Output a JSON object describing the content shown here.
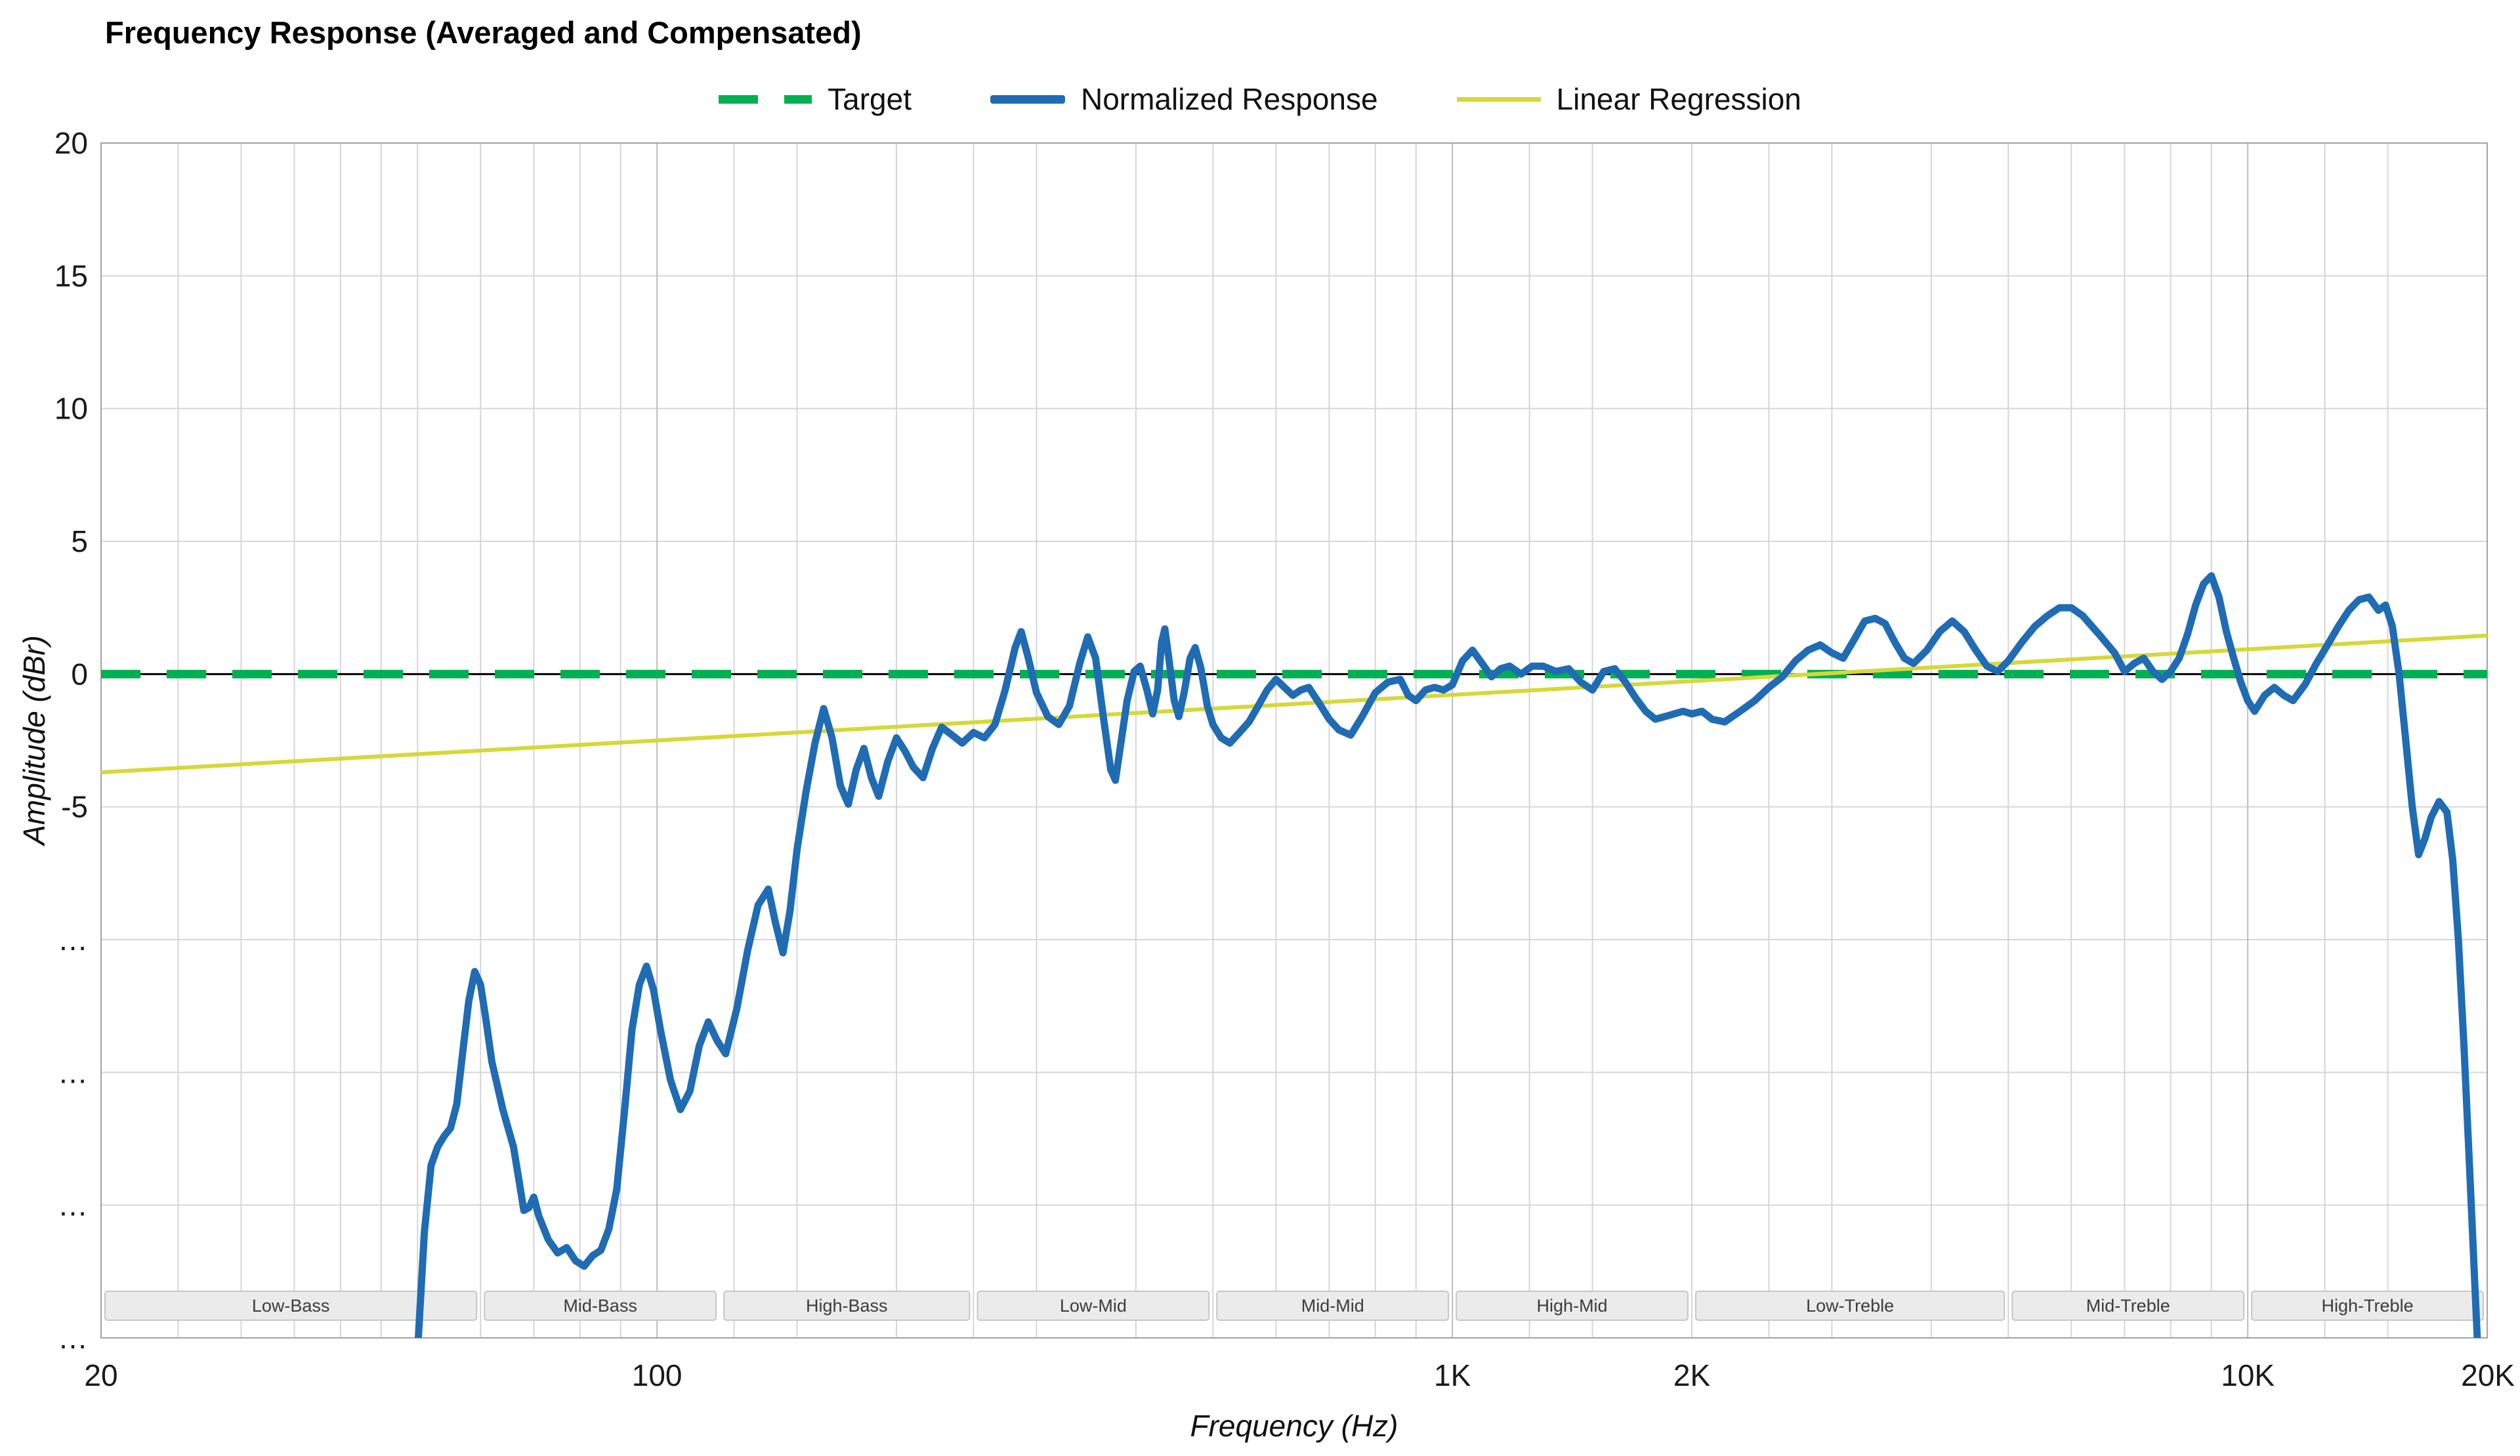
{
  "legend": {
    "items": [
      {
        "label": "Target"
      },
      {
        "label": "Normalized Response"
      },
      {
        "label": "Linear Regression"
      }
    ]
  },
  "chart_data": {
    "type": "line",
    "title": "Frequency Response (Averaged and Compensated)",
    "xlabel": "Frequency (Hz)",
    "ylabel": "Amplitude (dBr)",
    "x_scale": "log",
    "xlim": [
      20,
      20000
    ],
    "ylim": [
      -25,
      20
    ],
    "grid": true,
    "legend_position": "top-center",
    "x_ticks": [
      {
        "value": 20,
        "label": "20"
      },
      {
        "value": 100,
        "label": "100"
      },
      {
        "value": 1000,
        "label": "1K"
      },
      {
        "value": 2000,
        "label": "2K"
      },
      {
        "value": 10000,
        "label": "10K"
      },
      {
        "value": 20000,
        "label": "20K"
      }
    ],
    "y_ticks": [
      {
        "value": 20,
        "label": "20"
      },
      {
        "value": 15,
        "label": "15"
      },
      {
        "value": 10,
        "label": "10"
      },
      {
        "value": 5,
        "label": "5"
      },
      {
        "value": 0,
        "label": "0"
      },
      {
        "value": -5,
        "label": "-5"
      },
      {
        "value": -10,
        "label": "…"
      },
      {
        "value": -15,
        "label": "…"
      },
      {
        "value": -20,
        "label": "…"
      },
      {
        "value": -25,
        "label": "…"
      }
    ],
    "bands": [
      {
        "label": "Low-Bass",
        "from": 20,
        "to": 60
      },
      {
        "label": "Mid-Bass",
        "from": 60,
        "to": 120
      },
      {
        "label": "High-Bass",
        "from": 120,
        "to": 250
      },
      {
        "label": "Low-Mid",
        "from": 250,
        "to": 500
      },
      {
        "label": "Mid-Mid",
        "from": 500,
        "to": 1000
      },
      {
        "label": "High-Mid",
        "from": 1000,
        "to": 2000
      },
      {
        "label": "Low-Treble",
        "from": 2000,
        "to": 5000
      },
      {
        "label": "Mid-Treble",
        "from": 5000,
        "to": 10000
      },
      {
        "label": "High-Treble",
        "from": 10000,
        "to": 20000
      }
    ],
    "colors": {
      "target": "#00b052",
      "response": "#1f6cb4",
      "regression": "#d6d838",
      "grid": "#d6d6d6",
      "grid_major": "#bdbdbd",
      "frame": "#a3a3a3",
      "zero_line": "#000000",
      "band_fill": "#ebebeb",
      "band_border": "#c6c6c6",
      "band_text": "#3c3c3c",
      "tick_text": "#1a1a1a"
    },
    "series": [
      {
        "name": "Target",
        "type": "dashed-horizontal",
        "value": 0
      },
      {
        "name": "Normalized Response",
        "type": "line",
        "points": [
          [
            50,
            -25.5
          ],
          [
            51,
            -21.0
          ],
          [
            52,
            -18.5
          ],
          [
            53,
            -17.8
          ],
          [
            54,
            -17.4
          ],
          [
            55,
            -17.1
          ],
          [
            56,
            -16.2
          ],
          [
            57,
            -14.2
          ],
          [
            58,
            -12.3
          ],
          [
            59,
            -11.2
          ],
          [
            60,
            -11.7
          ],
          [
            61,
            -13.1
          ],
          [
            62,
            -14.6
          ],
          [
            64,
            -16.4
          ],
          [
            66,
            -17.8
          ],
          [
            67,
            -19.0
          ],
          [
            68,
            -20.2
          ],
          [
            69,
            -20.1
          ],
          [
            70,
            -19.7
          ],
          [
            71,
            -20.4
          ],
          [
            73,
            -21.3
          ],
          [
            75,
            -21.8
          ],
          [
            77,
            -21.6
          ],
          [
            79,
            -22.1
          ],
          [
            81,
            -22.3
          ],
          [
            83,
            -21.9
          ],
          [
            85,
            -21.7
          ],
          [
            87,
            -20.9
          ],
          [
            89,
            -19.4
          ],
          [
            91,
            -16.5
          ],
          [
            93,
            -13.4
          ],
          [
            95,
            -11.7
          ],
          [
            97,
            -11.0
          ],
          [
            99,
            -11.9
          ],
          [
            101,
            -13.4
          ],
          [
            104,
            -15.3
          ],
          [
            107,
            -16.4
          ],
          [
            110,
            -15.7
          ],
          [
            113,
            -14.0
          ],
          [
            116,
            -13.1
          ],
          [
            119,
            -13.8
          ],
          [
            122,
            -14.3
          ],
          [
            126,
            -12.6
          ],
          [
            130,
            -10.4
          ],
          [
            134,
            -8.7
          ],
          [
            138,
            -8.1
          ],
          [
            141,
            -9.4
          ],
          [
            144,
            -10.5
          ],
          [
            147,
            -8.9
          ],
          [
            150,
            -6.6
          ],
          [
            154,
            -4.4
          ],
          [
            158,
            -2.6
          ],
          [
            162,
            -1.3
          ],
          [
            166,
            -2.4
          ],
          [
            170,
            -4.2
          ],
          [
            174,
            -4.9
          ],
          [
            178,
            -3.6
          ],
          [
            182,
            -2.8
          ],
          [
            186,
            -3.9
          ],
          [
            190,
            -4.6
          ],
          [
            195,
            -3.3
          ],
          [
            200,
            -2.4
          ],
          [
            205,
            -2.9
          ],
          [
            210,
            -3.5
          ],
          [
            216,
            -3.9
          ],
          [
            222,
            -2.8
          ],
          [
            228,
            -2.0
          ],
          [
            235,
            -2.3
          ],
          [
            242,
            -2.6
          ],
          [
            250,
            -2.2
          ],
          [
            258,
            -2.4
          ],
          [
            266,
            -1.9
          ],
          [
            274,
            -0.6
          ],
          [
            282,
            1.0
          ],
          [
            287,
            1.6
          ],
          [
            293,
            0.6
          ],
          [
            300,
            -0.7
          ],
          [
            310,
            -1.6
          ],
          [
            320,
            -1.9
          ],
          [
            330,
            -1.2
          ],
          [
            340,
            0.4
          ],
          [
            348,
            1.4
          ],
          [
            356,
            0.6
          ],
          [
            364,
            -1.6
          ],
          [
            372,
            -3.6
          ],
          [
            377,
            -4.0
          ],
          [
            383,
            -2.6
          ],
          [
            390,
            -1.0
          ],
          [
            398,
            0.1
          ],
          [
            405,
            0.3
          ],
          [
            413,
            -0.6
          ],
          [
            420,
            -1.5
          ],
          [
            426,
            -0.6
          ],
          [
            431,
            1.2
          ],
          [
            435,
            1.7
          ],
          [
            440,
            0.6
          ],
          [
            447,
            -1.0
          ],
          [
            453,
            -1.6
          ],
          [
            460,
            -0.7
          ],
          [
            468,
            0.6
          ],
          [
            475,
            1.0
          ],
          [
            483,
            0.2
          ],
          [
            492,
            -1.2
          ],
          [
            500,
            -1.9
          ],
          [
            512,
            -2.4
          ],
          [
            525,
            -2.6
          ],
          [
            540,
            -2.2
          ],
          [
            555,
            -1.8
          ],
          [
            570,
            -1.2
          ],
          [
            585,
            -0.6
          ],
          [
            600,
            -0.2
          ],
          [
            615,
            -0.5
          ],
          [
            630,
            -0.8
          ],
          [
            645,
            -0.6
          ],
          [
            660,
            -0.5
          ],
          [
            680,
            -1.1
          ],
          [
            700,
            -1.7
          ],
          [
            720,
            -2.1
          ],
          [
            745,
            -2.3
          ],
          [
            770,
            -1.6
          ],
          [
            800,
            -0.7
          ],
          [
            830,
            -0.3
          ],
          [
            860,
            -0.2
          ],
          [
            880,
            -0.8
          ],
          [
            900,
            -1.0
          ],
          [
            925,
            -0.6
          ],
          [
            950,
            -0.5
          ],
          [
            975,
            -0.6
          ],
          [
            1000,
            -0.4
          ],
          [
            1030,
            0.5
          ],
          [
            1060,
            0.9
          ],
          [
            1090,
            0.4
          ],
          [
            1120,
            -0.1
          ],
          [
            1150,
            0.2
          ],
          [
            1180,
            0.3
          ],
          [
            1220,
            0.0
          ],
          [
            1260,
            0.3
          ],
          [
            1300,
            0.3
          ],
          [
            1350,
            0.1
          ],
          [
            1400,
            0.2
          ],
          [
            1450,
            -0.3
          ],
          [
            1500,
            -0.6
          ],
          [
            1550,
            0.1
          ],
          [
            1600,
            0.2
          ],
          [
            1650,
            -0.3
          ],
          [
            1700,
            -0.9
          ],
          [
            1750,
            -1.4
          ],
          [
            1800,
            -1.7
          ],
          [
            1850,
            -1.6
          ],
          [
            1900,
            -1.5
          ],
          [
            1950,
            -1.4
          ],
          [
            2000,
            -1.5
          ],
          [
            2060,
            -1.4
          ],
          [
            2120,
            -1.7
          ],
          [
            2200,
            -1.8
          ],
          [
            2300,
            -1.4
          ],
          [
            2400,
            -1.0
          ],
          [
            2500,
            -0.5
          ],
          [
            2600,
            -0.1
          ],
          [
            2700,
            0.5
          ],
          [
            2800,
            0.9
          ],
          [
            2900,
            1.1
          ],
          [
            3000,
            0.8
          ],
          [
            3100,
            0.6
          ],
          [
            3200,
            1.3
          ],
          [
            3300,
            2.0
          ],
          [
            3400,
            2.1
          ],
          [
            3500,
            1.9
          ],
          [
            3600,
            1.2
          ],
          [
            3700,
            0.6
          ],
          [
            3800,
            0.4
          ],
          [
            3950,
            0.9
          ],
          [
            4100,
            1.6
          ],
          [
            4250,
            2.0
          ],
          [
            4400,
            1.6
          ],
          [
            4550,
            0.9
          ],
          [
            4700,
            0.3
          ],
          [
            4850,
            0.1
          ],
          [
            5000,
            0.5
          ],
          [
            5200,
            1.2
          ],
          [
            5400,
            1.8
          ],
          [
            5600,
            2.2
          ],
          [
            5800,
            2.5
          ],
          [
            6000,
            2.5
          ],
          [
            6200,
            2.2
          ],
          [
            6500,
            1.5
          ],
          [
            6800,
            0.8
          ],
          [
            7000,
            0.1
          ],
          [
            7200,
            0.4
          ],
          [
            7400,
            0.6
          ],
          [
            7600,
            0.1
          ],
          [
            7800,
            -0.2
          ],
          [
            8000,
            0.1
          ],
          [
            8200,
            0.6
          ],
          [
            8400,
            1.5
          ],
          [
            8600,
            2.6
          ],
          [
            8800,
            3.4
          ],
          [
            9000,
            3.7
          ],
          [
            9200,
            2.9
          ],
          [
            9400,
            1.6
          ],
          [
            9600,
            0.6
          ],
          [
            9800,
            -0.3
          ],
          [
            10000,
            -1.0
          ],
          [
            10200,
            -1.4
          ],
          [
            10500,
            -0.8
          ],
          [
            10800,
            -0.5
          ],
          [
            11100,
            -0.8
          ],
          [
            11400,
            -1.0
          ],
          [
            11800,
            -0.4
          ],
          [
            12200,
            0.4
          ],
          [
            12600,
            1.1
          ],
          [
            13000,
            1.8
          ],
          [
            13400,
            2.4
          ],
          [
            13800,
            2.8
          ],
          [
            14200,
            2.9
          ],
          [
            14600,
            2.4
          ],
          [
            14900,
            2.6
          ],
          [
            15200,
            1.8
          ],
          [
            15500,
            0.0
          ],
          [
            15800,
            -2.5
          ],
          [
            16100,
            -5.0
          ],
          [
            16400,
            -6.8
          ],
          [
            16700,
            -6.2
          ],
          [
            17000,
            -5.4
          ],
          [
            17400,
            -4.8
          ],
          [
            17800,
            -5.2
          ],
          [
            18100,
            -7.0
          ],
          [
            18400,
            -10.0
          ],
          [
            18700,
            -14.0
          ],
          [
            19000,
            -18.5
          ],
          [
            19300,
            -23.0
          ],
          [
            19500,
            -26.0
          ]
        ]
      },
      {
        "name": "Linear Regression",
        "type": "line",
        "points": [
          [
            20,
            -3.7
          ],
          [
            20000,
            1.45
          ]
        ]
      }
    ]
  }
}
